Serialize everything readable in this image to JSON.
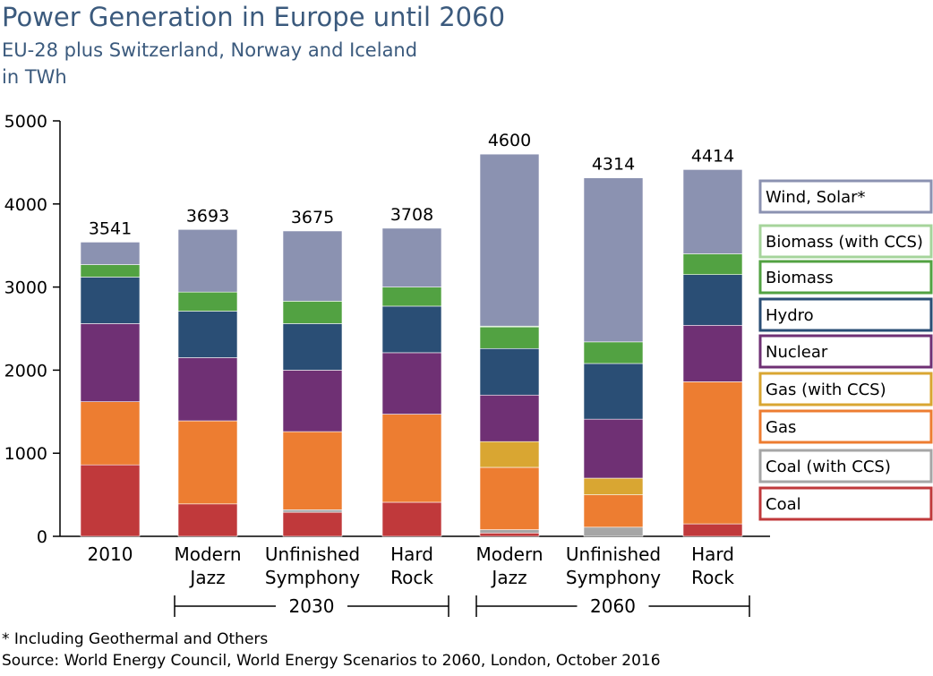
{
  "title": "Power Generation in Europe until 2060",
  "subtitle": "EU-28 plus Switzerland, Norway and Iceland",
  "unit": "in TWh",
  "footnote": "* Including Geothermal and Others",
  "source": "Source: World Energy Council, World Energy Scenarios to 2060, London, October 2016",
  "chart_data": {
    "type": "bar",
    "stacked": true,
    "ylim": [
      0,
      5000
    ],
    "yticks": [
      0,
      1000,
      2000,
      3000,
      4000,
      5000
    ],
    "grid": false,
    "legend_position": "right",
    "categories": [
      {
        "label": [
          "2010"
        ],
        "total": "3541"
      },
      {
        "label": [
          "Modern",
          "Jazz"
        ],
        "total": "3693"
      },
      {
        "label": [
          "Unfinished",
          "Symphony"
        ],
        "total": "3675"
      },
      {
        "label": [
          "Hard",
          "Rock"
        ],
        "total": "3708"
      },
      {
        "label": [
          "Modern",
          "Jazz"
        ],
        "total": "4600"
      },
      {
        "label": [
          "Unfinished",
          "Symphony"
        ],
        "total": "4314"
      },
      {
        "label": [
          "Hard",
          "Rock"
        ],
        "total": "4414"
      }
    ],
    "groups": [
      {
        "label": "2030",
        "from": 1,
        "to": 3
      },
      {
        "label": "2060",
        "from": 4,
        "to": 6
      }
    ],
    "series": [
      {
        "name": "Coal",
        "color": "#c0393b",
        "values": [
          860,
          390,
          290,
          410,
          40,
          0,
          150
        ]
      },
      {
        "name": "Coal (with CCS)",
        "color": "#a6a6a6",
        "values": [
          0,
          0,
          30,
          0,
          40,
          110,
          0
        ]
      },
      {
        "name": "Gas",
        "color": "#ed7d31",
        "values": [
          760,
          1000,
          940,
          1060,
          750,
          390,
          1710
        ]
      },
      {
        "name": "Gas (with CCS)",
        "color": "#d9a632",
        "values": [
          0,
          0,
          0,
          0,
          310,
          200,
          0
        ]
      },
      {
        "name": "Nuclear",
        "color": "#6f3074",
        "values": [
          940,
          760,
          740,
          740,
          560,
          710,
          680
        ]
      },
      {
        "name": "Hydro",
        "color": "#2a4e75",
        "values": [
          560,
          560,
          560,
          560,
          560,
          670,
          610
        ]
      },
      {
        "name": "Biomass",
        "color": "#52a242",
        "values": [
          150,
          230,
          270,
          230,
          260,
          260,
          250
        ]
      },
      {
        "name": "Biomass (with CCS)",
        "color": "#a6d49b",
        "values": [
          0,
          0,
          0,
          0,
          10,
          0,
          0
        ]
      },
      {
        "name": "Wind, Solar*",
        "color": "#8b92b1",
        "values": [
          271,
          753,
          845,
          708,
          2070,
          1974,
          1014
        ]
      }
    ],
    "legend_order": [
      "Wind, Solar*",
      "Biomass (with CCS)",
      "Biomass",
      "Hydro",
      "Nuclear",
      "Gas (with CCS)",
      "Gas",
      "Coal (with CCS)",
      "Coal"
    ]
  }
}
